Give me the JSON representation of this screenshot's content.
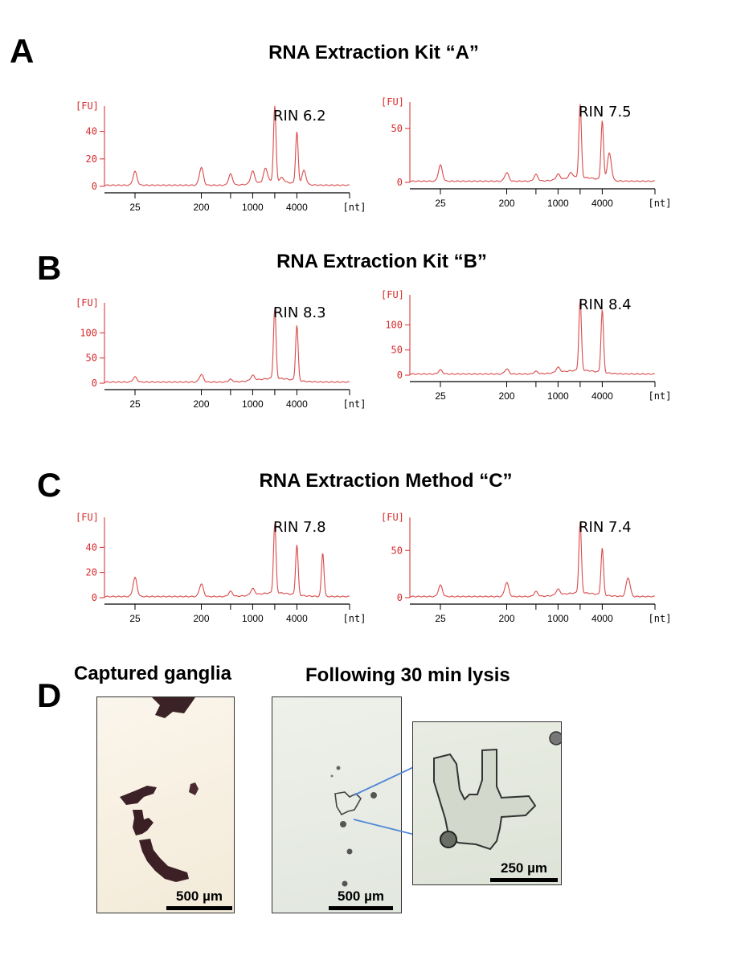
{
  "panels": {
    "A": {
      "letter": "A",
      "title": "RNA Extraction Kit “A”"
    },
    "B": {
      "letter": "B",
      "title": "RNA Extraction Kit “B”"
    },
    "C": {
      "letter": "C",
      "title": "RNA Extraction Method “C”"
    },
    "D": {
      "letter": "D",
      "left_title": "Captured ganglia",
      "right_title": "Following 30 min lysis",
      "scale_left": "500 µm",
      "scale_middle": "500 µm",
      "scale_inset": "250 µm"
    }
  },
  "chart_data": [
    {
      "id": "A-left",
      "type": "line",
      "rin": "RIN 6.2",
      "ylabel": "[FU]",
      "xlabel": "[nt]",
      "yticks": [
        0,
        20,
        40
      ],
      "ylim": [
        0,
        55
      ],
      "xticks": [
        "25",
        "200",
        "1000",
        "4000"
      ],
      "peaks": [
        [
          25,
          10
        ],
        [
          200,
          13
        ],
        [
          500,
          8
        ],
        [
          1000,
          9
        ],
        [
          1500,
          10
        ],
        [
          2000,
          55
        ],
        [
          2500,
          3
        ],
        [
          4000,
          38
        ],
        [
          5000,
          10
        ]
      ]
    },
    {
      "id": "A-right",
      "type": "line",
      "rin": "RIN 7.5",
      "ylabel": "[FU]",
      "xlabel": "[nt]",
      "yticks": [
        0,
        50
      ],
      "ylim": [
        0,
        70
      ],
      "xticks": [
        "25",
        "200",
        "1000",
        "4000"
      ],
      "peaks": [
        [
          25,
          15
        ],
        [
          200,
          8
        ],
        [
          500,
          6
        ],
        [
          1000,
          5
        ],
        [
          1500,
          5
        ],
        [
          2000,
          68
        ],
        [
          4000,
          55
        ],
        [
          5000,
          25
        ]
      ]
    },
    {
      "id": "B-left",
      "type": "line",
      "rin": "RIN 8.3",
      "ylabel": "[FU]",
      "xlabel": "[nt]",
      "yticks": [
        0,
        50,
        100
      ],
      "ylim": [
        0,
        150
      ],
      "xticks": [
        "25",
        "200",
        "1000",
        "4000"
      ],
      "peaks": [
        [
          25,
          10
        ],
        [
          200,
          15
        ],
        [
          500,
          5
        ],
        [
          1000,
          10
        ],
        [
          2000,
          140
        ],
        [
          4000,
          110
        ]
      ]
    },
    {
      "id": "B-right",
      "type": "line",
      "rin": "RIN 8.4",
      "ylabel": "[FU]",
      "xlabel": "[nt]",
      "yticks": [
        0,
        50,
        100
      ],
      "ylim": [
        0,
        150
      ],
      "xticks": [
        "25",
        "200",
        "1000",
        "4000"
      ],
      "peaks": [
        [
          25,
          8
        ],
        [
          200,
          10
        ],
        [
          500,
          5
        ],
        [
          1000,
          10
        ],
        [
          2000,
          140
        ],
        [
          4000,
          125
        ]
      ]
    },
    {
      "id": "C-left",
      "type": "line",
      "rin": "RIN 7.8",
      "ylabel": "[FU]",
      "xlabel": "[nt]",
      "yticks": [
        0,
        20,
        40
      ],
      "ylim": [
        0,
        60
      ],
      "xticks": [
        "25",
        "200",
        "1000",
        "4000"
      ],
      "peaks": [
        [
          25,
          15
        ],
        [
          200,
          10
        ],
        [
          500,
          4
        ],
        [
          1000,
          5
        ],
        [
          2000,
          55
        ],
        [
          4000,
          40
        ],
        [
          9000,
          35
        ]
      ]
    },
    {
      "id": "C-right",
      "type": "line",
      "rin": "RIN 7.4",
      "ylabel": "[FU]",
      "xlabel": "[nt]",
      "yticks": [
        0,
        50
      ],
      "ylim": [
        0,
        80
      ],
      "xticks": [
        "25",
        "200",
        "1000",
        "4000"
      ],
      "peaks": [
        [
          25,
          12
        ],
        [
          200,
          15
        ],
        [
          500,
          5
        ],
        [
          1000,
          6
        ],
        [
          2000,
          75
        ],
        [
          4000,
          50
        ],
        [
          9000,
          20
        ]
      ]
    }
  ]
}
